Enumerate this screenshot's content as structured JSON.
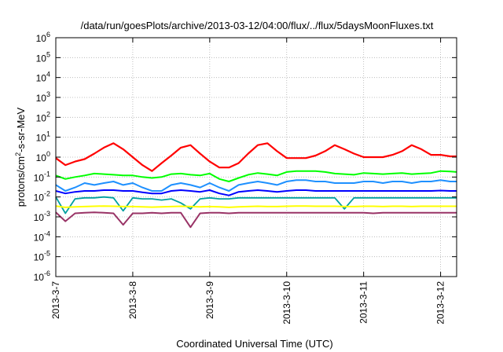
{
  "chart_data": {
    "type": "line",
    "title": "/data/run/goesPlots/archive/2013-03-12/04:00/flux/../flux/5daysMoonFluxes.txt",
    "xlabel": "Coordinated Universal Time (UTC)",
    "ylabel": {
      "base": "protons/cm",
      "sup": "2",
      "rest": "-s-sr-MeV"
    },
    "yscale": "log",
    "ylim": [
      1e-06,
      1000000.0
    ],
    "xlim": [
      "2013-03-07",
      "2013-03-12 05:00"
    ],
    "x_ticks": [
      "2013-3-7",
      "2013-3-8",
      "2013-3-9",
      "2013-3-10",
      "2013-3-11",
      "2013-3-12"
    ],
    "y_ticks": [
      {
        "base": "10",
        "exp": "-6"
      },
      {
        "base": "10",
        "exp": "-5"
      },
      {
        "base": "10",
        "exp": "-4"
      },
      {
        "base": "10",
        "exp": "-3"
      },
      {
        "base": "10",
        "exp": "-2"
      },
      {
        "base": "10",
        "exp": "-1"
      },
      {
        "base": "10",
        "exp": "0"
      },
      {
        "base": "10",
        "exp": "1"
      },
      {
        "base": "10",
        "exp": "2"
      },
      {
        "base": "10",
        "exp": "3"
      },
      {
        "base": "10",
        "exp": "4"
      },
      {
        "base": "10",
        "exp": "5"
      },
      {
        "base": "10",
        "exp": "6"
      }
    ],
    "grid": true,
    "x": [
      "2013-03-07 00:00",
      "2013-03-07 03:00",
      "2013-03-07 06:00",
      "2013-03-07 09:00",
      "2013-03-07 12:00",
      "2013-03-07 15:00",
      "2013-03-07 18:00",
      "2013-03-07 21:00",
      "2013-03-08 00:00",
      "2013-03-08 03:00",
      "2013-03-08 06:00",
      "2013-03-08 09:00",
      "2013-03-08 12:00",
      "2013-03-08 15:00",
      "2013-03-08 18:00",
      "2013-03-08 21:00",
      "2013-03-09 00:00",
      "2013-03-09 03:00",
      "2013-03-09 06:00",
      "2013-03-09 09:00",
      "2013-03-09 12:00",
      "2013-03-09 15:00",
      "2013-03-09 18:00",
      "2013-03-09 21:00",
      "2013-03-10 00:00",
      "2013-03-10 03:00",
      "2013-03-10 06:00",
      "2013-03-10 09:00",
      "2013-03-10 12:00",
      "2013-03-10 15:00",
      "2013-03-10 18:00",
      "2013-03-10 21:00",
      "2013-03-11 00:00",
      "2013-03-11 03:00",
      "2013-03-11 06:00",
      "2013-03-11 09:00",
      "2013-03-11 12:00",
      "2013-03-11 15:00",
      "2013-03-11 18:00",
      "2013-03-11 21:00",
      "2013-03-12 00:00",
      "2013-03-12 03:00",
      "2013-03-12 05:00"
    ],
    "series": [
      {
        "color": "#ff0000",
        "width": 2.2,
        "values": [
          0.9,
          0.4,
          0.6,
          0.8,
          1.5,
          3.0,
          5.0,
          2.5,
          1.0,
          0.4,
          0.2,
          0.5,
          1.2,
          3.0,
          4.0,
          1.5,
          0.6,
          0.3,
          0.3,
          0.5,
          1.5,
          4.0,
          5.0,
          2.0,
          0.9,
          0.9,
          0.9,
          1.2,
          2.0,
          4.0,
          2.5,
          1.5,
          1.0,
          1.0,
          1.0,
          1.3,
          2.0,
          4.0,
          2.5,
          1.3,
          1.3,
          1.1,
          1.1
        ]
      },
      {
        "color": "#00ff00",
        "width": 2,
        "values": [
          0.12,
          0.08,
          0.1,
          0.12,
          0.15,
          0.14,
          0.13,
          0.12,
          0.12,
          0.1,
          0.09,
          0.1,
          0.14,
          0.15,
          0.13,
          0.12,
          0.15,
          0.08,
          0.06,
          0.09,
          0.13,
          0.16,
          0.14,
          0.12,
          0.18,
          0.2,
          0.2,
          0.2,
          0.18,
          0.15,
          0.14,
          0.13,
          0.16,
          0.15,
          0.14,
          0.15,
          0.16,
          0.14,
          0.15,
          0.16,
          0.2,
          0.19,
          0.18
        ]
      },
      {
        "color": "#1e90ff",
        "width": 2,
        "values": [
          0.04,
          0.02,
          0.03,
          0.05,
          0.04,
          0.05,
          0.06,
          0.04,
          0.05,
          0.03,
          0.02,
          0.02,
          0.04,
          0.05,
          0.04,
          0.03,
          0.05,
          0.03,
          0.02,
          0.04,
          0.05,
          0.06,
          0.05,
          0.04,
          0.06,
          0.07,
          0.07,
          0.06,
          0.06,
          0.05,
          0.05,
          0.05,
          0.06,
          0.06,
          0.05,
          0.06,
          0.06,
          0.05,
          0.06,
          0.06,
          0.07,
          0.06,
          0.06
        ]
      },
      {
        "color": "#0000ff",
        "width": 2,
        "values": [
          0.02,
          0.015,
          0.018,
          0.02,
          0.02,
          0.022,
          0.022,
          0.02,
          0.02,
          0.017,
          0.015,
          0.015,
          0.02,
          0.022,
          0.02,
          0.018,
          0.022,
          0.015,
          0.012,
          0.018,
          0.02,
          0.022,
          0.02,
          0.018,
          0.02,
          0.022,
          0.022,
          0.02,
          0.02,
          0.02,
          0.02,
          0.02,
          0.02,
          0.02,
          0.02,
          0.02,
          0.02,
          0.02,
          0.02,
          0.02,
          0.021,
          0.02,
          0.02
        ]
      },
      {
        "color": "#00a0a0",
        "width": 1.8,
        "values": [
          0.01,
          0.0015,
          0.008,
          0.009,
          0.009,
          0.01,
          0.009,
          0.002,
          0.009,
          0.008,
          0.008,
          0.007,
          0.008,
          0.005,
          0.0025,
          0.008,
          0.009,
          0.008,
          0.008,
          0.009,
          0.009,
          0.009,
          0.009,
          0.009,
          0.009,
          0.009,
          0.009,
          0.009,
          0.009,
          0.009,
          0.0025,
          0.009,
          0.009,
          0.009,
          0.009,
          0.009,
          0.009,
          0.009,
          0.009,
          0.009,
          0.009,
          0.009,
          0.009
        ]
      },
      {
        "color": "#ffff00",
        "width": 2,
        "values": [
          0.0035,
          0.003,
          0.0032,
          0.0033,
          0.0034,
          0.0035,
          0.0034,
          0.0033,
          0.0033,
          0.0032,
          0.0031,
          0.0032,
          0.0033,
          0.0034,
          0.0033,
          0.0032,
          0.0033,
          0.0032,
          0.003,
          0.0032,
          0.0033,
          0.0034,
          0.0033,
          0.0033,
          0.0034,
          0.0035,
          0.0035,
          0.0034,
          0.0034,
          0.0034,
          0.0033,
          0.0033,
          0.0034,
          0.0034,
          0.0033,
          0.0034,
          0.0034,
          0.0033,
          0.0034,
          0.0034,
          0.0034,
          0.0034,
          0.0034
        ]
      },
      {
        "color": "#993366",
        "width": 2,
        "values": [
          0.0017,
          0.0006,
          0.0015,
          0.0016,
          0.0017,
          0.0016,
          0.0015,
          0.0004,
          0.0015,
          0.0015,
          0.0016,
          0.0015,
          0.0016,
          0.0016,
          0.0003,
          0.0015,
          0.0016,
          0.0016,
          0.0015,
          0.0016,
          0.0016,
          0.0016,
          0.0016,
          0.0016,
          0.0016,
          0.0016,
          0.0016,
          0.0016,
          0.0016,
          0.0016,
          0.0016,
          0.0016,
          0.0016,
          0.0015,
          0.0016,
          0.0016,
          0.0016,
          0.0016,
          0.0016,
          0.0016,
          0.0016,
          0.0016,
          0.0016
        ]
      }
    ]
  }
}
